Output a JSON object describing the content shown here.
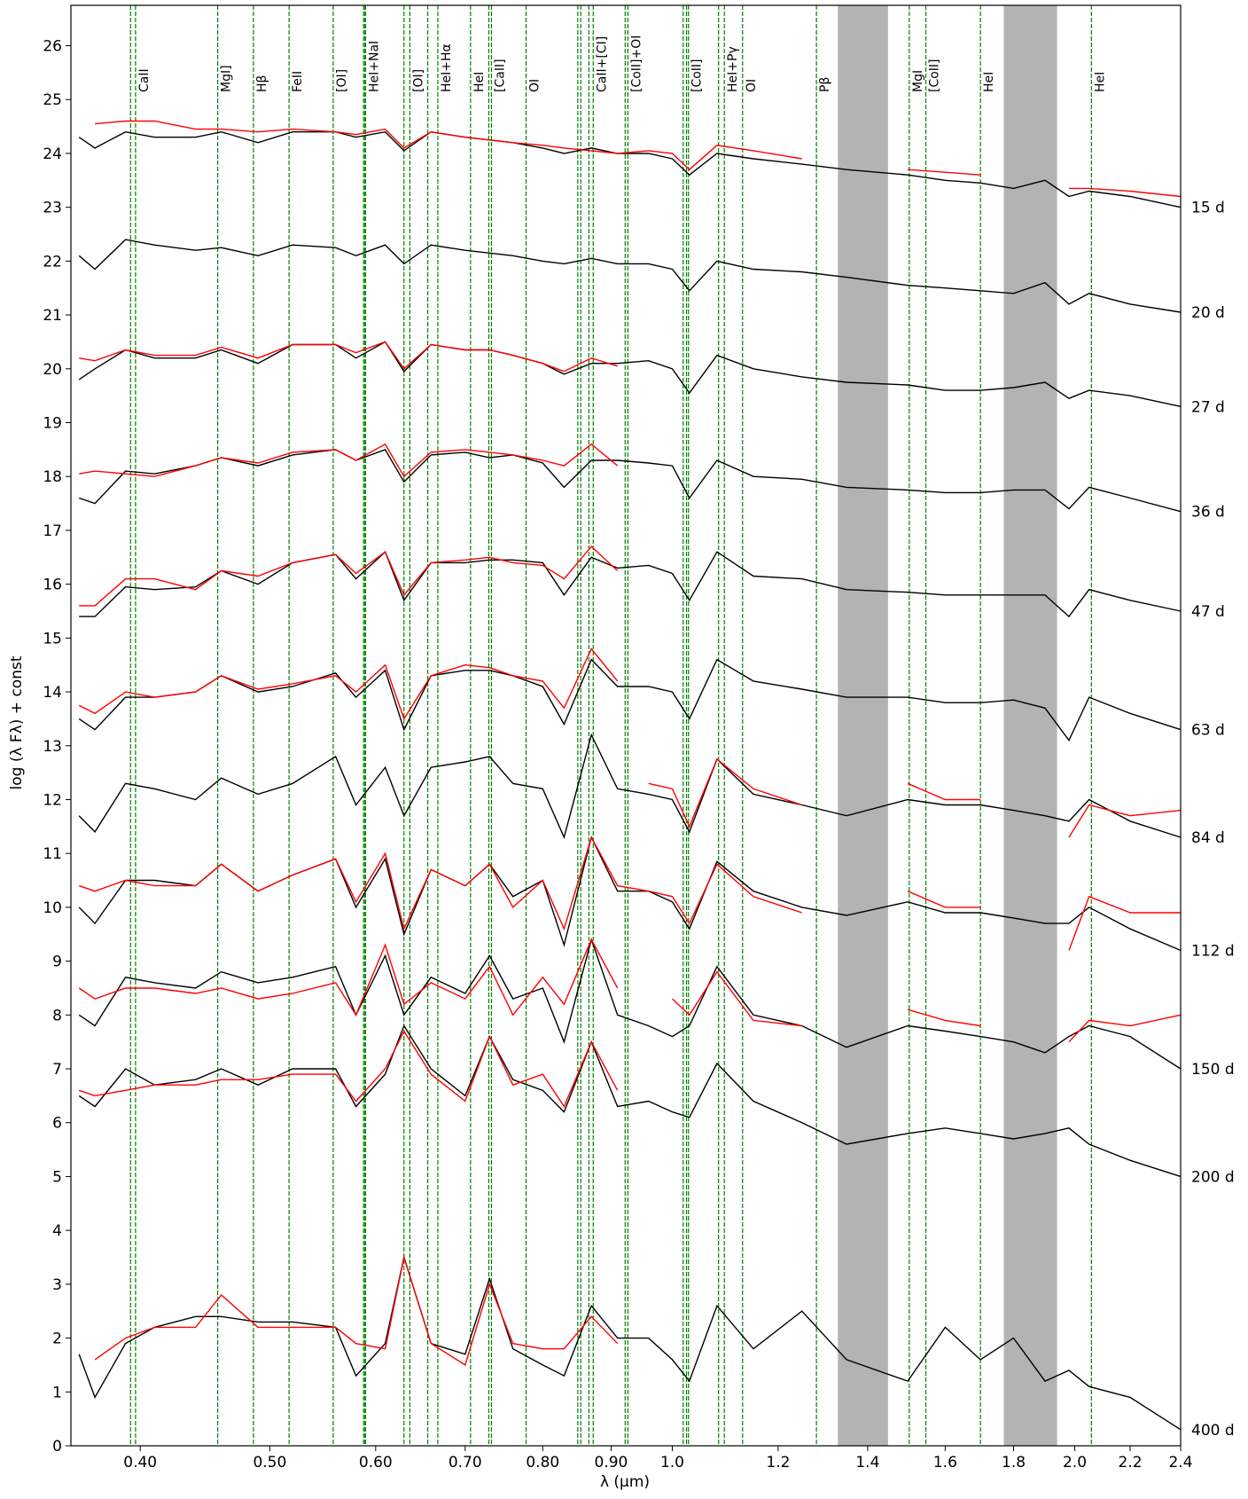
{
  "chart_data": {
    "type": "line",
    "xlabel": "λ (µm)",
    "ylabel": "log (λ Fλ) + const",
    "xscale": "log",
    "xlim": [
      0.355,
      2.4
    ],
    "ylim": [
      0,
      26.75
    ],
    "xticks": [
      {
        "value": 0.4,
        "label": "0.40"
      },
      {
        "value": 0.5,
        "label": "0.50"
      },
      {
        "value": 0.6,
        "label": "0.60"
      },
      {
        "value": 0.7,
        "label": "0.70"
      },
      {
        "value": 0.8,
        "label": "0.80"
      },
      {
        "value": 0.9,
        "label": "0.90"
      },
      {
        "value": 1.0,
        "label": "1.0"
      },
      1.2,
      1.4,
      1.6,
      1.8,
      {
        "value": 2.0,
        "label": "2.0"
      },
      2.2,
      2.4
    ],
    "yticks": [
      0,
      1,
      2,
      3,
      4,
      5,
      6,
      7,
      8,
      9,
      10,
      11,
      12,
      13,
      14,
      15,
      16,
      17,
      18,
      19,
      20,
      21,
      22,
      23,
      24,
      25,
      26
    ],
    "shaded_bands": [
      [
        1.33,
        1.45
      ],
      [
        1.77,
        1.94
      ]
    ],
    "band_color": "#b3b3b3",
    "line_id_color": "#008000",
    "line_ids": [
      {
        "label": "CaII",
        "x": [
          0.3934,
          0.3968
        ]
      },
      {
        "label": "MgI]",
        "x": [
          0.4571
        ]
      },
      {
        "label": "Hβ",
        "x": [
          0.4861
        ]
      },
      {
        "label": "FeII",
        "x": [
          0.5169
        ]
      },
      {
        "label": "[OI]",
        "x": [
          0.5577
        ]
      },
      {
        "label": "HeI+NaI",
        "x": [
          0.5876,
          0.589,
          0.5896
        ]
      },
      {
        "label": "[OI]",
        "x": [
          0.63,
          0.6364
        ]
      },
      {
        "label": "HeI+Hα",
        "x": [
          0.6563,
          0.6678
        ]
      },
      {
        "label": "HeI",
        "x": [
          0.7065
        ]
      },
      {
        "label": "[CaII]",
        "x": [
          0.7291,
          0.7324
        ]
      },
      {
        "label": "OI",
        "x": [
          0.7774
        ]
      },
      {
        "label": "CaII+[CI]",
        "x": [
          0.8498,
          0.8542,
          0.8662,
          0.8727
        ]
      },
      {
        "label": "[CoII]+OI",
        "x": [
          0.9221,
          0.9264
        ]
      },
      {
        "label": "[CoII]",
        "x": [
          1.019,
          1.0248,
          1.0283
        ]
      },
      {
        "label": "HeI+Pγ",
        "x": [
          1.083,
          1.0938
        ]
      },
      {
        "label": "OI",
        "x": [
          1.1287
        ]
      },
      {
        "label": "Pβ",
        "x": [
          1.2818
        ]
      },
      {
        "label": "MgI",
        "x": [
          1.504
        ]
      },
      {
        "label": "[CoII]",
        "x": [
          1.5475
        ]
      },
      {
        "label": "HeI",
        "x": [
          1.7002
        ]
      },
      {
        "label": "HeI",
        "x": [
          2.0581
        ]
      }
    ],
    "x": [
      0.36,
      0.37,
      0.39,
      0.41,
      0.44,
      0.46,
      0.49,
      0.52,
      0.56,
      0.58,
      0.61,
      0.63,
      0.66,
      0.7,
      0.73,
      0.76,
      0.8,
      0.83,
      0.87,
      0.91,
      0.96,
      1.0,
      1.03,
      1.08,
      1.15,
      1.25,
      1.35,
      1.5,
      1.6,
      1.7,
      1.8,
      1.9,
      1.98,
      2.05,
      2.2,
      2.4
    ],
    "series": [
      {
        "name": "15 d",
        "color": "#000000",
        "values": [
          24.3,
          24.1,
          24.4,
          24.3,
          24.3,
          24.4,
          24.2,
          24.4,
          24.4,
          24.3,
          24.4,
          24.05,
          24.4,
          24.3,
          24.25,
          24.2,
          24.1,
          24.0,
          24.1,
          24.0,
          24.0,
          23.9,
          23.6,
          24.0,
          23.9,
          23.8,
          23.7,
          23.6,
          23.5,
          23.45,
          23.35,
          23.5,
          23.2,
          23.3,
          23.2,
          23.0
        ]
      },
      {
        "color": "#ff0000",
        "values": [
          null,
          24.55,
          24.6,
          24.6,
          24.45,
          24.45,
          24.4,
          24.45,
          24.4,
          24.35,
          24.45,
          24.1,
          24.4,
          24.3,
          24.25,
          24.2,
          24.15,
          24.1,
          24.05,
          24.0,
          24.05,
          24.0,
          23.7,
          24.15,
          24.05,
          23.9,
          null,
          23.7,
          23.65,
          23.6,
          null,
          null,
          23.35,
          23.35,
          23.3,
          23.2
        ]
      },
      {
        "name": "20 d",
        "color": "#000000",
        "values": [
          22.1,
          21.85,
          22.4,
          22.3,
          22.2,
          22.25,
          22.1,
          22.3,
          22.25,
          22.1,
          22.3,
          21.95,
          22.3,
          22.2,
          22.15,
          22.1,
          22.0,
          21.95,
          22.05,
          21.95,
          21.95,
          21.85,
          21.45,
          22.0,
          21.85,
          21.8,
          21.7,
          21.55,
          21.5,
          21.45,
          21.4,
          21.6,
          21.2,
          21.4,
          21.2,
          21.05
        ]
      },
      {
        "name": "27 d",
        "color": "#000000",
        "values": [
          19.8,
          20.0,
          20.35,
          20.2,
          20.2,
          20.35,
          20.1,
          20.45,
          20.45,
          20.2,
          20.5,
          19.95,
          20.45,
          20.35,
          20.35,
          20.25,
          20.1,
          19.9,
          20.1,
          20.1,
          20.15,
          20.0,
          19.55,
          20.25,
          20.0,
          19.85,
          19.75,
          19.7,
          19.6,
          19.6,
          19.65,
          19.75,
          19.45,
          19.6,
          19.5,
          19.3
        ]
      },
      {
        "color": "#ff0000",
        "values": [
          20.2,
          20.15,
          20.35,
          20.25,
          20.25,
          20.4,
          20.2,
          20.45,
          20.45,
          20.3,
          20.5,
          20.0,
          20.45,
          20.35,
          20.35,
          20.25,
          20.1,
          19.95,
          20.2,
          20.05,
          null,
          null,
          null,
          null,
          null,
          null,
          null,
          null,
          null,
          null,
          null,
          null,
          null,
          null,
          null,
          null
        ]
      },
      {
        "name": "36 d",
        "color": "#000000",
        "values": [
          17.6,
          17.5,
          18.1,
          18.05,
          18.2,
          18.35,
          18.2,
          18.4,
          18.5,
          18.3,
          18.5,
          17.9,
          18.4,
          18.45,
          18.35,
          18.4,
          18.25,
          17.8,
          18.3,
          18.3,
          18.25,
          18.2,
          17.6,
          18.3,
          18.0,
          17.95,
          17.8,
          17.75,
          17.7,
          17.7,
          17.75,
          17.75,
          17.4,
          17.8,
          17.6,
          17.35
        ]
      },
      {
        "color": "#ff0000",
        "values": [
          18.05,
          18.1,
          18.05,
          18.0,
          18.2,
          18.35,
          18.25,
          18.45,
          18.5,
          18.3,
          18.6,
          18.0,
          18.45,
          18.5,
          18.45,
          18.4,
          18.3,
          18.2,
          18.6,
          18.2,
          null,
          null,
          null,
          null,
          null,
          null,
          null,
          null,
          null,
          null,
          null,
          null,
          null,
          null,
          null,
          null
        ]
      },
      {
        "name": "47 d",
        "color": "#000000",
        "values": [
          15.4,
          15.4,
          15.95,
          15.9,
          15.95,
          16.25,
          16.0,
          16.4,
          16.55,
          16.1,
          16.6,
          15.7,
          16.4,
          16.4,
          16.45,
          16.45,
          16.4,
          15.8,
          16.5,
          16.3,
          16.35,
          16.2,
          15.7,
          16.6,
          16.15,
          16.1,
          15.9,
          15.85,
          15.8,
          15.8,
          15.8,
          15.8,
          15.4,
          15.9,
          15.7,
          15.5
        ]
      },
      {
        "color": "#ff0000",
        "values": [
          15.6,
          15.6,
          16.1,
          16.1,
          15.9,
          16.25,
          16.15,
          16.4,
          16.55,
          16.2,
          16.6,
          15.8,
          16.4,
          16.45,
          16.5,
          16.4,
          16.35,
          16.1,
          16.7,
          16.25,
          null,
          null,
          null,
          null,
          null,
          null,
          null,
          null,
          null,
          null,
          null,
          null,
          null,
          null,
          null,
          null
        ]
      },
      {
        "name": "63 d",
        "color": "#000000",
        "values": [
          13.5,
          13.3,
          13.9,
          13.9,
          14.0,
          14.3,
          14.0,
          14.1,
          14.35,
          13.9,
          14.4,
          13.3,
          14.3,
          14.4,
          14.4,
          14.3,
          14.1,
          13.4,
          14.6,
          14.1,
          14.1,
          14.0,
          13.5,
          14.6,
          14.2,
          14.05,
          13.9,
          13.9,
          13.8,
          13.8,
          13.85,
          13.7,
          13.1,
          13.9,
          13.6,
          13.3
        ]
      },
      {
        "color": "#ff0000",
        "values": [
          13.75,
          13.6,
          14.0,
          13.9,
          14.0,
          14.3,
          14.05,
          14.15,
          14.3,
          14.0,
          14.5,
          13.5,
          14.3,
          14.5,
          14.45,
          14.3,
          14.2,
          13.7,
          14.8,
          14.2,
          null,
          null,
          null,
          null,
          null,
          null,
          null,
          null,
          null,
          null,
          null,
          null,
          null,
          null,
          null,
          null
        ]
      },
      {
        "name": "84 d",
        "color": "#000000",
        "values": [
          11.7,
          11.4,
          12.3,
          12.2,
          12.0,
          12.4,
          12.1,
          12.3,
          12.8,
          11.9,
          12.6,
          11.7,
          12.6,
          12.7,
          12.8,
          12.3,
          12.2,
          11.3,
          13.2,
          12.2,
          12.1,
          12.0,
          11.4,
          12.75,
          12.1,
          11.9,
          11.7,
          12.0,
          11.9,
          11.9,
          11.8,
          11.7,
          11.6,
          12.0,
          11.6,
          11.3
        ]
      },
      {
        "color": "#ff0000",
        "values": [
          null,
          null,
          null,
          null,
          null,
          null,
          null,
          null,
          null,
          null,
          null,
          null,
          null,
          null,
          null,
          null,
          null,
          null,
          null,
          null,
          12.3,
          12.2,
          11.5,
          12.75,
          12.2,
          11.9,
          null,
          12.3,
          12.0,
          12.0,
          null,
          null,
          11.3,
          11.9,
          11.7,
          11.8
        ]
      },
      {
        "name": "112 d",
        "color": "#000000",
        "values": [
          10.0,
          9.7,
          10.5,
          10.5,
          10.4,
          10.8,
          10.3,
          10.6,
          10.9,
          10.0,
          10.9,
          9.5,
          10.7,
          10.4,
          10.8,
          10.2,
          10.5,
          9.3,
          11.3,
          10.3,
          10.3,
          10.1,
          9.6,
          10.85,
          10.3,
          10.0,
          9.85,
          10.1,
          9.9,
          9.9,
          9.8,
          9.7,
          9.7,
          10.0,
          9.6,
          9.2
        ]
      },
      {
        "color": "#ff0000",
        "values": [
          10.4,
          10.3,
          10.5,
          10.4,
          10.4,
          10.8,
          10.3,
          10.6,
          10.9,
          10.1,
          11.0,
          9.6,
          10.7,
          10.4,
          10.8,
          10.0,
          10.5,
          9.6,
          11.3,
          10.4,
          10.3,
          10.2,
          9.7,
          10.8,
          10.2,
          9.9,
          null,
          10.3,
          10.0,
          10.0,
          null,
          null,
          9.2,
          10.2,
          9.9,
          9.9
        ]
      },
      {
        "name": "150 d",
        "color": "#000000",
        "values": [
          8.0,
          7.8,
          8.7,
          8.6,
          8.5,
          8.8,
          8.6,
          8.7,
          8.9,
          8.0,
          9.1,
          8.0,
          8.7,
          8.4,
          9.1,
          8.3,
          8.5,
          7.5,
          9.4,
          8.0,
          7.8,
          7.6,
          7.8,
          8.9,
          8.0,
          7.8,
          7.4,
          7.8,
          7.7,
          7.6,
          7.5,
          7.3,
          7.6,
          7.8,
          7.6,
          7.0
        ]
      },
      {
        "color": "#ff0000",
        "values": [
          8.5,
          8.3,
          8.5,
          8.5,
          8.4,
          8.5,
          8.3,
          8.4,
          8.6,
          8.0,
          9.3,
          8.2,
          8.6,
          8.3,
          8.9,
          8.0,
          8.7,
          8.2,
          9.4,
          8.5,
          null,
          8.3,
          8.0,
          8.8,
          7.9,
          7.8,
          null,
          8.1,
          7.9,
          7.8,
          null,
          null,
          7.5,
          7.9,
          7.8,
          8.0
        ]
      },
      {
        "name": "200 d",
        "color": "#000000",
        "values": [
          6.5,
          6.3,
          7.0,
          6.7,
          6.8,
          7.0,
          6.7,
          7.0,
          7.0,
          6.3,
          6.9,
          7.8,
          7.0,
          6.5,
          7.6,
          6.8,
          6.6,
          6.2,
          7.5,
          6.3,
          6.4,
          6.2,
          6.1,
          7.1,
          6.4,
          6.0,
          5.6,
          5.8,
          5.9,
          5.8,
          5.7,
          5.8,
          5.9,
          5.6,
          5.3,
          5.0
        ]
      },
      {
        "color": "#ff0000",
        "values": [
          6.6,
          6.5,
          6.6,
          6.7,
          6.7,
          6.8,
          6.8,
          6.9,
          6.9,
          6.4,
          7.0,
          7.7,
          6.9,
          6.4,
          7.6,
          6.7,
          6.9,
          6.3,
          7.5,
          6.6,
          null,
          null,
          null,
          null,
          null,
          null,
          null,
          null,
          null,
          null,
          null,
          null,
          null,
          null,
          null,
          null
        ]
      },
      {
        "name": "400 d",
        "color": "#000000",
        "values": [
          1.7,
          0.9,
          1.9,
          2.2,
          2.4,
          2.4,
          2.3,
          2.3,
          2.2,
          1.3,
          1.9,
          3.5,
          1.9,
          1.7,
          3.1,
          1.8,
          1.5,
          1.3,
          2.6,
          2.0,
          2.0,
          1.6,
          1.2,
          2.6,
          1.8,
          2.5,
          1.6,
          1.2,
          2.2,
          1.6,
          2.0,
          1.2,
          1.4,
          1.1,
          0.9,
          0.3
        ]
      },
      {
        "color": "#ff0000",
        "values": [
          null,
          1.6,
          2.0,
          2.2,
          2.2,
          2.8,
          2.2,
          2.2,
          2.2,
          1.9,
          1.8,
          3.5,
          1.9,
          1.5,
          3.0,
          1.9,
          1.8,
          1.8,
          2.4,
          1.9,
          null,
          null,
          null,
          null,
          null,
          null,
          null,
          null,
          null,
          null,
          null,
          null,
          null,
          null,
          null,
          null
        ]
      }
    ]
  }
}
